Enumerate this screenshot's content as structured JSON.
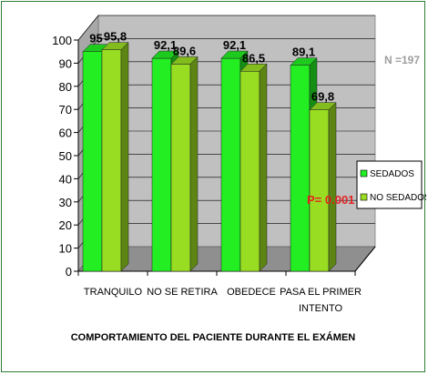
{
  "chart_data": {
    "type": "bar",
    "categories": [
      "TRANQUILO",
      "NO SE RETIRA",
      "OBEDECE",
      "PASA EL PRIMER INTENTO"
    ],
    "category_lines": [
      [
        "TRANQUILO"
      ],
      [
        "NO SE RETIRA"
      ],
      [
        "OBEDECE"
      ],
      [
        "PASA EL PRIMER",
        "INTENTO"
      ]
    ],
    "series": [
      {
        "name": "SEDADOS",
        "values": [
          95,
          92.1,
          92.1,
          89.1
        ],
        "labels": [
          "95",
          "92,1",
          "92,1",
          "89,1"
        ],
        "color": "#22ee22"
      },
      {
        "name": "NO SEDADOS",
        "values": [
          95.8,
          89.6,
          86.5,
          69.8
        ],
        "labels": [
          "95,8",
          "89,6",
          "86,5",
          "69,8"
        ],
        "color": "#99dd22"
      }
    ],
    "yticks": [
      0,
      10,
      20,
      30,
      40,
      50,
      60,
      70,
      80,
      90,
      100
    ],
    "ylim": [
      0,
      100
    ],
    "xlabel": "COMPORTAMIENTO DEL PACIENTE DURANTE EL EXÁMEN",
    "title": "",
    "ylabel": "",
    "legend_placement": "right",
    "grid": true,
    "annotations": [
      {
        "text": "N =197",
        "color": "#9e9e9e"
      },
      {
        "text": "P= 0.001",
        "color": "#e52222"
      }
    ],
    "wall_color": "#c0c0c0"
  }
}
